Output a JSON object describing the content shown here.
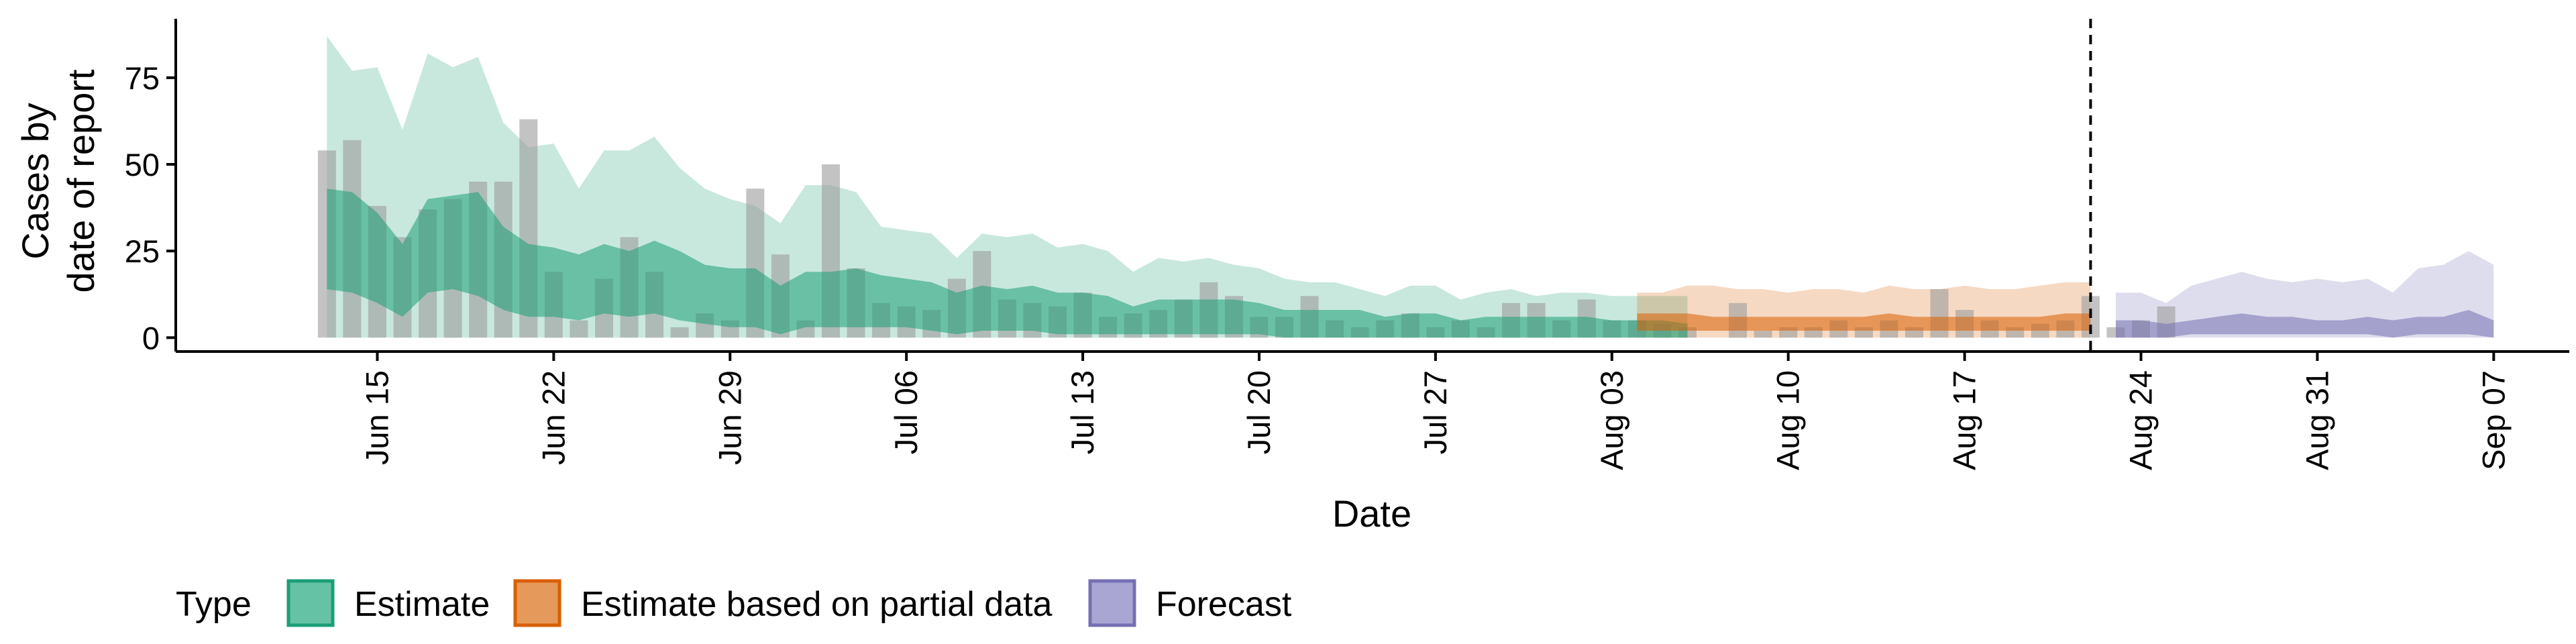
{
  "chart_data": {
    "type": "area",
    "xlabel": "Date",
    "ylabel_lines": [
      "Cases by",
      "date of report"
    ],
    "y_ticks": [
      0,
      25,
      50,
      75
    ],
    "ylim": [
      -4,
      92
    ],
    "xlim": [
      "2020-06-07",
      "2020-09-10"
    ],
    "x_ticks": [
      {
        "date": "2020-06-15",
        "label": "Jun 15"
      },
      {
        "date": "2020-06-22",
        "label": "Jun 22"
      },
      {
        "date": "2020-06-29",
        "label": "Jun 29"
      },
      {
        "date": "2020-07-06",
        "label": "Jul 06"
      },
      {
        "date": "2020-07-13",
        "label": "Jul 13"
      },
      {
        "date": "2020-07-20",
        "label": "Jul 20"
      },
      {
        "date": "2020-07-27",
        "label": "Jul 27"
      },
      {
        "date": "2020-08-03",
        "label": "Aug 03"
      },
      {
        "date": "2020-08-10",
        "label": "Aug 10"
      },
      {
        "date": "2020-08-17",
        "label": "Aug 17"
      },
      {
        "date": "2020-08-24",
        "label": "Aug 24"
      },
      {
        "date": "2020-08-31",
        "label": "Aug 31"
      },
      {
        "date": "2020-09-07",
        "label": "Sep 07"
      }
    ],
    "forecast_line_date": "2020-08-22",
    "legend": {
      "title": "Type",
      "position": "bottom",
      "entries": [
        {
          "label": "Estimate",
          "color": "#66c2a5",
          "border": "#1b9e77"
        },
        {
          "label": "Estimate based on partial data",
          "color": "#e5995a",
          "border": "#d95f02"
        },
        {
          "label": "Forecast",
          "color": "#a9a6d3",
          "border": "#7570b3"
        }
      ]
    },
    "colors": {
      "estimate": "#1b9e77",
      "partial": "#d95f02",
      "forecast": "#7570b3",
      "observed": "#9e9e9e"
    },
    "observed": {
      "start_date": "2020-06-13",
      "values": [
        54,
        57,
        38,
        29,
        37,
        40,
        45,
        45,
        63,
        19,
        5,
        17,
        29,
        19,
        3,
        7,
        5,
        43,
        24,
        5,
        50,
        20,
        10,
        9,
        8,
        17,
        25,
        11,
        10,
        9,
        13,
        6,
        7,
        8,
        11,
        16,
        12,
        6,
        6,
        12,
        5,
        3,
        5,
        7,
        3,
        5,
        3,
        10,
        10,
        5,
        11,
        5,
        5,
        4,
        3,
        0,
        10,
        2,
        3,
        3,
        5,
        3,
        5,
        3,
        14,
        8,
        5,
        3,
        4,
        5,
        12,
        3,
        5,
        9
      ]
    },
    "series": [
      {
        "name": "Estimate",
        "start_date": "2020-06-13",
        "outer_upper": [
          87,
          77,
          78,
          60,
          82,
          78,
          81,
          62,
          55,
          56,
          43,
          54,
          54,
          58,
          49,
          43,
          40,
          38,
          33,
          44,
          44,
          42,
          32,
          31,
          30,
          23,
          30,
          29,
          30,
          26,
          27,
          25,
          19,
          23,
          22,
          23,
          21,
          20,
          17,
          16,
          16,
          14,
          12,
          15,
          15,
          11,
          13,
          14,
          12,
          13,
          13,
          12,
          12,
          12,
          12
        ],
        "inner_upper": [
          43,
          42,
          36,
          27,
          40,
          41,
          42,
          32,
          27,
          26,
          24,
          27,
          25,
          28,
          25,
          21,
          20,
          20,
          15,
          19,
          19,
          20,
          18,
          17,
          16,
          13,
          15,
          14,
          15,
          13,
          13,
          12,
          9,
          11,
          11,
          11,
          11,
          10,
          8,
          8,
          8,
          8,
          6,
          7,
          7,
          5,
          6,
          6,
          6,
          6,
          6,
          5,
          5,
          5,
          4
        ],
        "inner_lower": [
          14,
          13,
          10,
          6,
          13,
          14,
          12,
          8,
          6,
          6,
          5,
          7,
          6,
          7,
          5,
          4,
          3,
          3,
          1,
          3,
          3,
          3,
          3,
          3,
          2,
          1,
          2,
          2,
          2,
          1,
          1,
          1,
          1,
          1,
          1,
          1,
          1,
          1,
          0,
          0,
          0,
          0,
          0,
          0,
          0,
          0,
          0,
          0,
          0,
          0,
          0,
          0,
          0,
          0,
          0
        ],
        "outer_lower": [
          0,
          0,
          0,
          0,
          0,
          0,
          0,
          0,
          0,
          0,
          0,
          0,
          0,
          0,
          0,
          0,
          0,
          0,
          0,
          0,
          0,
          0,
          0,
          0,
          0,
          0,
          0,
          0,
          0,
          0,
          0,
          0,
          0,
          0,
          0,
          0,
          0,
          0,
          0,
          0,
          0,
          0,
          0,
          0,
          0,
          0,
          0,
          0,
          0,
          0,
          0,
          0,
          0,
          0,
          0
        ]
      },
      {
        "name": "Estimate based on partial data",
        "start_date": "2020-08-04",
        "outer_upper": [
          13,
          13,
          15,
          15,
          14,
          14,
          13,
          14,
          14,
          13,
          15,
          14,
          14,
          15,
          14,
          14,
          15,
          16,
          16
        ],
        "inner_upper": [
          7,
          7,
          7,
          6,
          6,
          6,
          6,
          6,
          6,
          6,
          7,
          6,
          6,
          6,
          6,
          6,
          6,
          7,
          7
        ],
        "inner_lower": [
          2,
          2,
          2,
          2,
          2,
          2,
          2,
          2,
          2,
          2,
          2,
          2,
          2,
          2,
          2,
          2,
          2,
          2,
          2
        ],
        "outer_lower": [
          0,
          0,
          0,
          0,
          0,
          0,
          0,
          0,
          0,
          0,
          0,
          0,
          0,
          0,
          0,
          0,
          0,
          0,
          0
        ]
      },
      {
        "name": "Forecast",
        "start_date": "2020-08-23",
        "outer_upper": [
          13,
          13,
          10,
          15,
          17,
          19,
          17,
          16,
          17,
          16,
          17,
          13,
          20,
          21,
          25,
          21
        ],
        "inner_upper": [
          5,
          5,
          4,
          5,
          6,
          7,
          6,
          6,
          5,
          5,
          6,
          5,
          6,
          6,
          8,
          5
        ],
        "inner_lower": [
          0,
          0,
          0,
          1,
          1,
          1,
          1,
          1,
          1,
          1,
          1,
          0,
          1,
          1,
          1,
          0
        ],
        "outer_lower": [
          0,
          0,
          0,
          0,
          0,
          0,
          0,
          0,
          0,
          0,
          0,
          0,
          0,
          0,
          0,
          0
        ]
      }
    ]
  }
}
